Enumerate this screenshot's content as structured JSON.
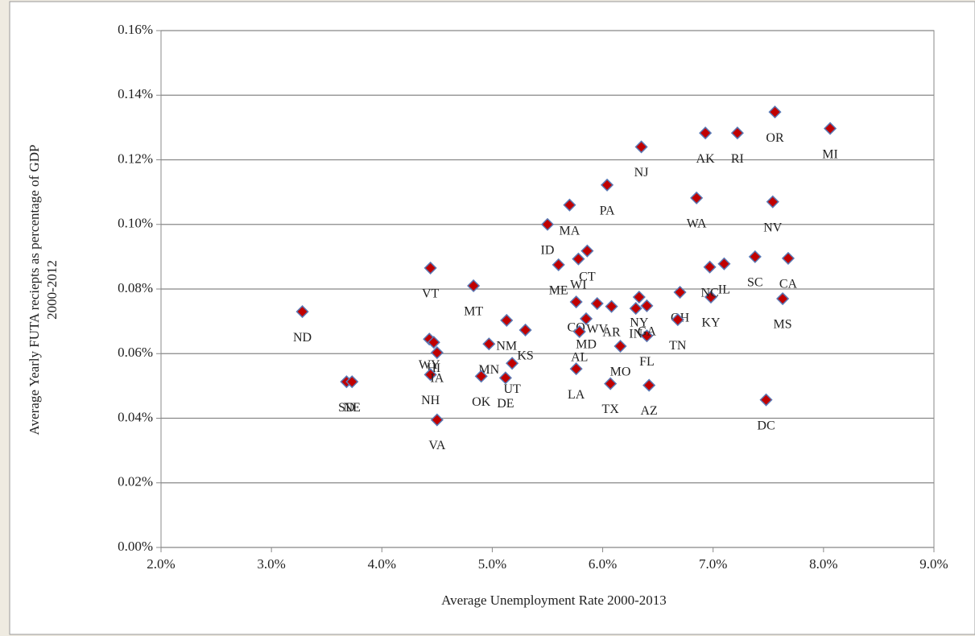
{
  "chart_data": {
    "type": "scatter",
    "xlabel": "Average Unemployment Rate 2000-2013",
    "ylabel": [
      "Average Yearly FUTA reciepts as percentage of GDP",
      "2000-2012"
    ],
    "xlim": [
      2.0,
      9.0
    ],
    "xticks": [
      {
        "value": 2.0,
        "label": "2.0%"
      },
      {
        "value": 3.0,
        "label": "3.0%"
      },
      {
        "value": 4.0,
        "label": "4.0%"
      },
      {
        "value": 5.0,
        "label": "5.0%"
      },
      {
        "value": 6.0,
        "label": "6.0%"
      },
      {
        "value": 7.0,
        "label": "7.0%"
      },
      {
        "value": 8.0,
        "label": "8.0%"
      },
      {
        "value": 9.0,
        "label": "9.0%"
      }
    ],
    "ylim": [
      0,
      0.16
    ],
    "yticks": [
      {
        "value": 0,
        "label": "0.00%"
      },
      {
        "value": 0.02,
        "label": "0.02%"
      },
      {
        "value": 0.04,
        "label": "0.04%"
      },
      {
        "value": 0.06,
        "label": "0.06%"
      },
      {
        "value": 0.08,
        "label": "0.08%"
      },
      {
        "value": 0.1,
        "label": "0.10%"
      },
      {
        "value": 0.12,
        "label": "0.12%"
      },
      {
        "value": 0.14,
        "label": "0.14%"
      },
      {
        "value": 0.16,
        "label": "0.16%"
      }
    ],
    "grid": true,
    "color": "#c00000",
    "edge_color": "#5a78b4",
    "labels": [
      "ND",
      "SD",
      "NE",
      "VT",
      "WY",
      "HI",
      "NH",
      "IA",
      "VA",
      "MT",
      "MN",
      "OK",
      "DE",
      "UT",
      "NM",
      "KS",
      "MA",
      "ID",
      "PA",
      "NJ",
      "ME",
      "WI",
      "CT",
      "WV",
      "CO",
      "MD",
      "AL",
      "LA",
      "AR",
      "MO",
      "TX",
      "IN",
      "NY",
      "FL",
      "AZ",
      "GA",
      "OH",
      "TN",
      "KY",
      "NC",
      "IL",
      "SC",
      "CA",
      "MS",
      "DC",
      "NV",
      "WA",
      "AK",
      "RI",
      "OR",
      "MI"
    ],
    "x": [
      3.28,
      3.68,
      3.73,
      4.44,
      4.43,
      4.47,
      4.44,
      4.5,
      4.5,
      4.83,
      4.97,
      4.9,
      5.12,
      5.18,
      5.13,
      5.3,
      5.7,
      5.5,
      6.04,
      6.35,
      5.6,
      5.78,
      5.86,
      5.95,
      5.76,
      5.85,
      5.79,
      5.76,
      6.08,
      6.16,
      6.07,
      6.3,
      6.33,
      6.4,
      6.42,
      6.4,
      6.7,
      6.68,
      6.98,
      6.97,
      7.1,
      7.38,
      7.68,
      7.63,
      7.48,
      7.54,
      6.85,
      6.93,
      7.22,
      7.56,
      8.06
    ],
    "y": [
      0.073,
      0.0513,
      0.0513,
      0.0865,
      0.0645,
      0.0635,
      0.0535,
      0.0603,
      0.0395,
      0.081,
      0.063,
      0.053,
      0.0525,
      0.057,
      0.0703,
      0.0673,
      0.106,
      0.1,
      0.1122,
      0.124,
      0.0875,
      0.0893,
      0.0918,
      0.0755,
      0.076,
      0.0708,
      0.0668,
      0.0553,
      0.0746,
      0.0623,
      0.0507,
      0.074,
      0.0775,
      0.0655,
      0.0502,
      0.0748,
      0.079,
      0.0705,
      0.0775,
      0.0868,
      0.0878,
      0.09,
      0.0895,
      0.077,
      0.0457,
      0.107,
      0.1082,
      0.1283,
      0.1283,
      0.1348,
      0.1297
    ]
  }
}
